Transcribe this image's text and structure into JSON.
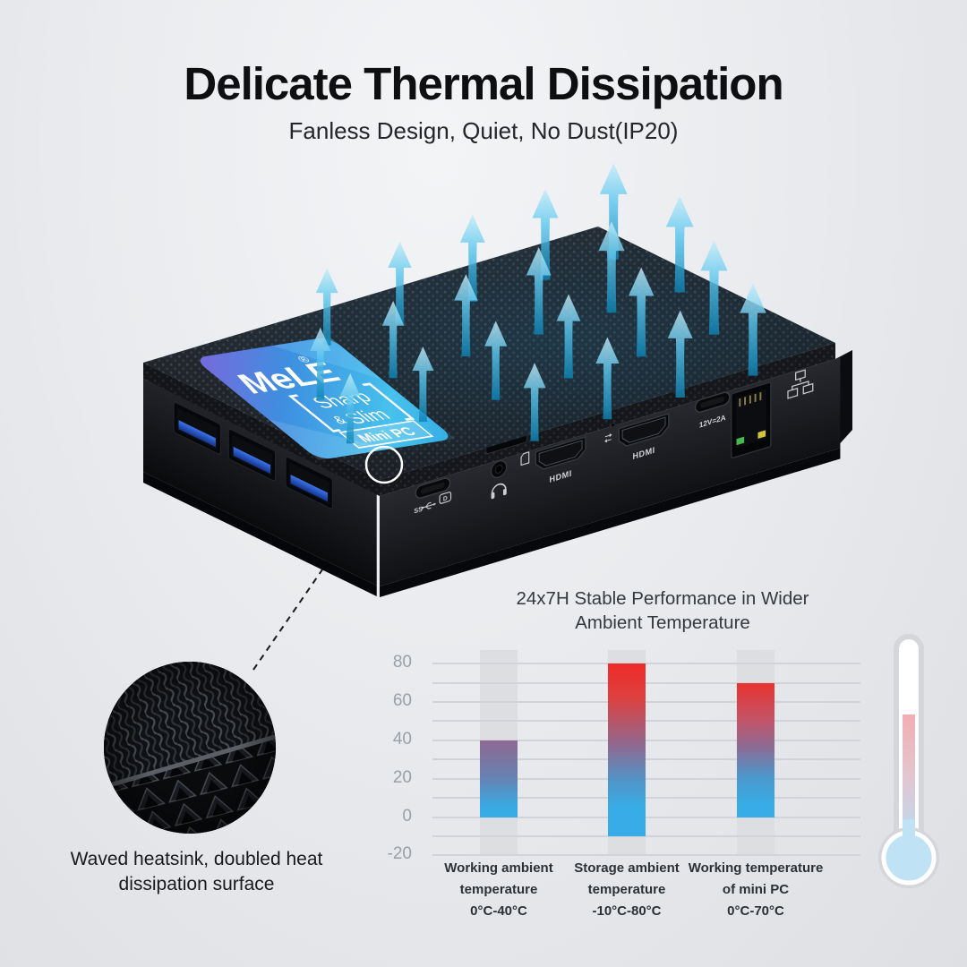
{
  "header": {
    "title": "Delicate Thermal Dissipation",
    "subtitle": "Fanless Design, Quiet, No Dust(IP20)"
  },
  "device": {
    "brand": "MeLE",
    "reg_mark": "®",
    "sticker": {
      "sharp": "Sharp",
      "amp": "&",
      "slim": "Slim",
      "badge": "Mini PC"
    },
    "ports": {
      "hdmi": "HDMI",
      "power": "12V=2A",
      "usb_ss": "SS",
      "dp": "D"
    }
  },
  "callout": {
    "line1": "Waved heatsink, doubled heat",
    "line2": "dissipation surface"
  },
  "chart_data": {
    "type": "bar",
    "title_line1": "24x7H Stable Performance in Wider",
    "title_line2": "Ambient Temperature",
    "title": "24x7H Stable Performance in Wider Ambient Temperature",
    "ylim": [
      -24,
      88
    ],
    "grid_min": -20,
    "grid_max": 80,
    "grid_step": 10,
    "y_ticks": [
      80,
      60,
      40,
      20,
      0,
      -20
    ],
    "categories": [
      [
        "Working ambient",
        "temperature",
        "0°C-40°C"
      ],
      [
        "Storage ambient",
        "temperature",
        "-10°C-80°C"
      ],
      [
        "Working temperature",
        "of mini PC",
        "0°C-70°C"
      ]
    ],
    "series": [
      {
        "name": "Working ambient temperature",
        "from": 0,
        "to": 40,
        "gradient": "#8e6a92 0%, #6a7fae 45%, #3ba9e2 85%, #38ace6 100%"
      },
      {
        "name": "Storage ambient temperature",
        "from": -10,
        "to": 80,
        "gradient": "#ee2b28 0%, #dd4140 20%, #8e6a92 48%, #4f95c8 68%, #38ace6 83%, #38ace6 100%"
      },
      {
        "name": "Working temperature of mini PC",
        "from": 0,
        "to": 70,
        "gradient": "#e8332f 0%, #c25468 28%, #8e6a92 47%, #4b98cc 70%, #38ace6 90%"
      }
    ],
    "column_bg": "#dcdee2",
    "legend": "none",
    "grid_on": true
  },
  "colors": {
    "bar_blue": "#38ace6",
    "bar_red": "#ee2b28",
    "bar_purple": "#8e6a92",
    "arrow_blue": "#58c4ec",
    "sticker_blue": "#3e9fe4",
    "column_gray": "#dcdee2",
    "thermo_pink": "#f2aeb4",
    "thermo_blue": "#bfe2f5"
  }
}
